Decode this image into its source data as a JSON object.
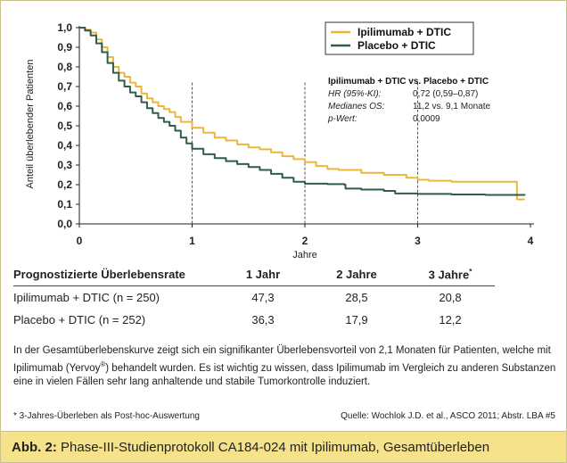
{
  "chart_data": {
    "type": "line",
    "ylabel": "Anteil überlebender Patienten",
    "xlabel": "Jahre",
    "xlim": [
      0,
      4
    ],
    "ylim": [
      0,
      1.0
    ],
    "x_ticks": [
      "0",
      "1",
      "2",
      "3",
      "4"
    ],
    "y_ticks": [
      "0,0",
      "0,1",
      "0,2",
      "0,3",
      "0,4",
      "0,5",
      "0,6",
      "0,7",
      "0,8",
      "0,9",
      "1,0"
    ],
    "reference_lines_x": [
      1,
      2,
      3
    ],
    "grid": false,
    "legend_position": "top-right",
    "series": [
      {
        "name": "Ipilimumab + DTIC",
        "color": "#e9b73a",
        "points": [
          [
            0,
            1.0
          ],
          [
            0.05,
            0.99
          ],
          [
            0.1,
            0.975
          ],
          [
            0.15,
            0.94
          ],
          [
            0.2,
            0.9
          ],
          [
            0.25,
            0.85
          ],
          [
            0.3,
            0.8
          ],
          [
            0.35,
            0.77
          ],
          [
            0.4,
            0.75
          ],
          [
            0.45,
            0.72
          ],
          [
            0.5,
            0.7
          ],
          [
            0.55,
            0.665
          ],
          [
            0.6,
            0.64
          ],
          [
            0.65,
            0.62
          ],
          [
            0.7,
            0.6
          ],
          [
            0.75,
            0.585
          ],
          [
            0.8,
            0.57
          ],
          [
            0.85,
            0.545
          ],
          [
            0.9,
            0.52
          ],
          [
            1.0,
            0.49
          ],
          [
            1.1,
            0.465
          ],
          [
            1.2,
            0.44
          ],
          [
            1.3,
            0.425
          ],
          [
            1.4,
            0.405
          ],
          [
            1.5,
            0.39
          ],
          [
            1.6,
            0.38
          ],
          [
            1.7,
            0.365
          ],
          [
            1.8,
            0.345
          ],
          [
            1.9,
            0.33
          ],
          [
            2.0,
            0.315
          ],
          [
            2.1,
            0.295
          ],
          [
            2.2,
            0.28
          ],
          [
            2.3,
            0.275
          ],
          [
            2.5,
            0.26
          ],
          [
            2.7,
            0.25
          ],
          [
            2.9,
            0.235
          ],
          [
            3.0,
            0.225
          ],
          [
            3.1,
            0.22
          ],
          [
            3.3,
            0.215
          ],
          [
            3.5,
            0.215
          ],
          [
            3.7,
            0.215
          ],
          [
            3.87,
            0.215
          ],
          [
            3.88,
            0.125
          ],
          [
            3.95,
            0.125
          ]
        ]
      },
      {
        "name": "Placebo + DTIC",
        "color": "#2f5d48",
        "points": [
          [
            0,
            1.0
          ],
          [
            0.05,
            0.985
          ],
          [
            0.1,
            0.96
          ],
          [
            0.15,
            0.92
          ],
          [
            0.2,
            0.875
          ],
          [
            0.25,
            0.82
          ],
          [
            0.3,
            0.77
          ],
          [
            0.35,
            0.73
          ],
          [
            0.4,
            0.7
          ],
          [
            0.45,
            0.67
          ],
          [
            0.5,
            0.65
          ],
          [
            0.55,
            0.62
          ],
          [
            0.6,
            0.59
          ],
          [
            0.65,
            0.565
          ],
          [
            0.7,
            0.54
          ],
          [
            0.75,
            0.52
          ],
          [
            0.8,
            0.5
          ],
          [
            0.85,
            0.475
          ],
          [
            0.9,
            0.44
          ],
          [
            0.95,
            0.41
          ],
          [
            1.0,
            0.383
          ],
          [
            1.1,
            0.355
          ],
          [
            1.2,
            0.335
          ],
          [
            1.3,
            0.32
          ],
          [
            1.4,
            0.305
          ],
          [
            1.5,
            0.29
          ],
          [
            1.6,
            0.275
          ],
          [
            1.7,
            0.255
          ],
          [
            1.8,
            0.235
          ],
          [
            1.9,
            0.215
          ],
          [
            2.0,
            0.205
          ],
          [
            2.2,
            0.203
          ],
          [
            2.35,
            0.2
          ],
          [
            2.36,
            0.18
          ],
          [
            2.5,
            0.175
          ],
          [
            2.7,
            0.168
          ],
          [
            2.8,
            0.155
          ],
          [
            3.0,
            0.153
          ],
          [
            3.3,
            0.15
          ],
          [
            3.6,
            0.148
          ],
          [
            3.95,
            0.146
          ]
        ]
      }
    ]
  },
  "legend": {
    "items": [
      {
        "label": "Ipilimumab + DTIC",
        "color": "#e9b73a"
      },
      {
        "label": "Placebo + DTIC",
        "color": "#2f5d48"
      }
    ]
  },
  "stats": {
    "title": "Ipilimumab + DTIC vs. Placebo + DTIC",
    "rows": [
      {
        "label": "HR (95%-KI):",
        "value": "0,72 (0,59–0,87)"
      },
      {
        "label": "Medianes OS:",
        "value": "11,2 vs. 9,1 Monate"
      },
      {
        "label": "p-Wert:",
        "value": "0,0009"
      }
    ]
  },
  "table": {
    "header": {
      "label": "Prognostizierte Überlebensrate",
      "col1": "1 Jahr",
      "col2": "2 Jahre",
      "col3": "3 Jahre",
      "col3_mark": "*"
    },
    "rows": [
      {
        "label": "Ipilimumab + DTIC (n = 250)",
        "v1": "47,3",
        "v2": "28,5",
        "v3": "20,8"
      },
      {
        "label": "Placebo + DTIC (n = 252)",
        "v1": "36,3",
        "v2": "17,9",
        "v3": "12,2"
      }
    ]
  },
  "description": {
    "part1": "In der Gesamtüberlebenskurve zeigt sich ein signifikanter Überlebensvorteil von 2,1 Monaten für Patienten, welche mit Ipilimumab (Yervoy",
    "reg": "®",
    "part2": ") behandelt wurden. Es ist wichtig zu wissen, dass Ipilimumab im Vergleich zu anderen Substanzen eine in vielen Fällen sehr lang anhaltende und stabile Tumorkontrolle induziert."
  },
  "footnote": "* 3-Jahres-Überleben als Post-hoc-Auswertung",
  "source": "Quelle: Wochlok J.D. et al., ASCO 2011; Abstr. LBA #5",
  "caption": {
    "prefix": "Abb. 2:",
    "text": " Phase-III-Studienprotokoll CA184-024 mit Ipilimumab, Gesamtüberleben"
  }
}
